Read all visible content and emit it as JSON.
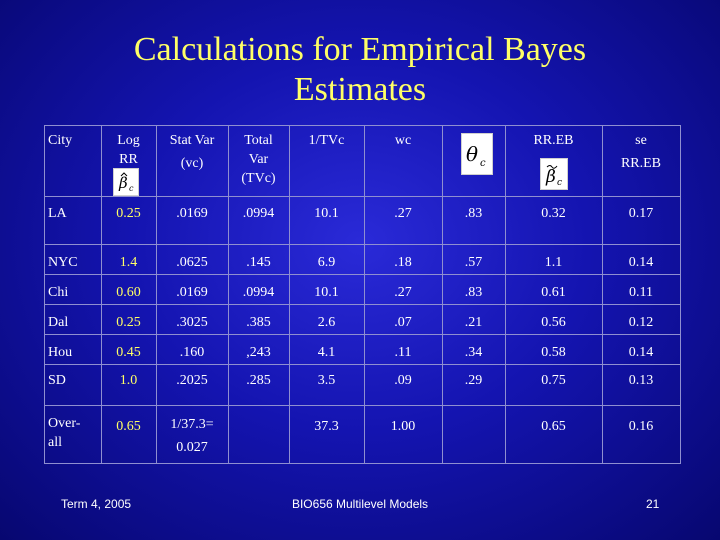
{
  "title": {
    "line1": "Calculations for Empirical Bayes",
    "line2": "Estimates"
  },
  "table": {
    "headers": {
      "city": "City",
      "log_rr_line1": "Log",
      "log_rr_line2": "RR",
      "stat_var_line1": "Stat Var",
      "stat_var_line2": "(vc)",
      "total_var_line1": "Total",
      "total_var_line2": "Var",
      "total_var_line3": "(TVc)",
      "inv_tvc": "1/TVc",
      "wc": "wc",
      "rr_eb": "RR.EB",
      "se_line1": "se",
      "se_line2": "RR.EB"
    },
    "header_icons": {
      "beta_hat": "beta-hat-c-icon",
      "theta_c": "theta-c-icon",
      "beta_tilde": "beta-tilde-c-icon"
    },
    "rows": [
      {
        "city": "LA",
        "log_rr": "0.25",
        "vc": ".0169",
        "tvc": ".0994",
        "inv_tvc": "10.1",
        "wc": ".27",
        "theta": ".83",
        "rr_eb": "0.32",
        "se": "0.17"
      },
      {
        "city": "NYC",
        "log_rr": "1.4",
        "vc": ".0625",
        "tvc": ".145",
        "inv_tvc": "6.9",
        "wc": ".18",
        "theta": ".57",
        "rr_eb": "1.1",
        "se": "0.14"
      },
      {
        "city": "Chi",
        "log_rr": "0.60",
        "vc": ".0169",
        "tvc": ".0994",
        "inv_tvc": "10.1",
        "wc": ".27",
        "theta": ".83",
        "rr_eb": "0.61",
        "se": "0.11"
      },
      {
        "city": "Dal",
        "log_rr": "0.25",
        "vc": ".3025",
        "tvc": ".385",
        "inv_tvc": "2.6",
        "wc": ".07",
        "theta": ".21",
        "rr_eb": "0.56",
        "se": "0.12"
      },
      {
        "city": "Hou",
        "log_rr": "0.45",
        "vc": ".160",
        "tvc": ",243",
        "inv_tvc": "4.1",
        "wc": ".11",
        "theta": ".34",
        "rr_eb": "0.58",
        "se": "0.14"
      },
      {
        "city": "SD",
        "log_rr": "1.0",
        "vc": ".2025",
        "tvc": ".285",
        "inv_tvc": "3.5",
        "wc": ".09",
        "theta": ".29",
        "rr_eb": "0.75",
        "se": "0.13"
      }
    ],
    "overall": {
      "city_line1": "Over-",
      "city_line2": "all",
      "log_rr": "0.65",
      "vc_line1": "1/37.3=",
      "vc_line2": "0.027",
      "tvc": "",
      "inv_tvc": "37.3",
      "wc": "1.00",
      "theta": "",
      "rr_eb": "0.65",
      "se": "0.16"
    }
  },
  "footer": {
    "left": "Term 4, 2005",
    "center": "BIO656 Multilevel Models",
    "page": "21"
  },
  "colors": {
    "background": "#1414b0",
    "title": "#ffff66",
    "log_rr_values": "#ffff66",
    "text": "#ffffff",
    "grid": "#8f8fd0"
  }
}
